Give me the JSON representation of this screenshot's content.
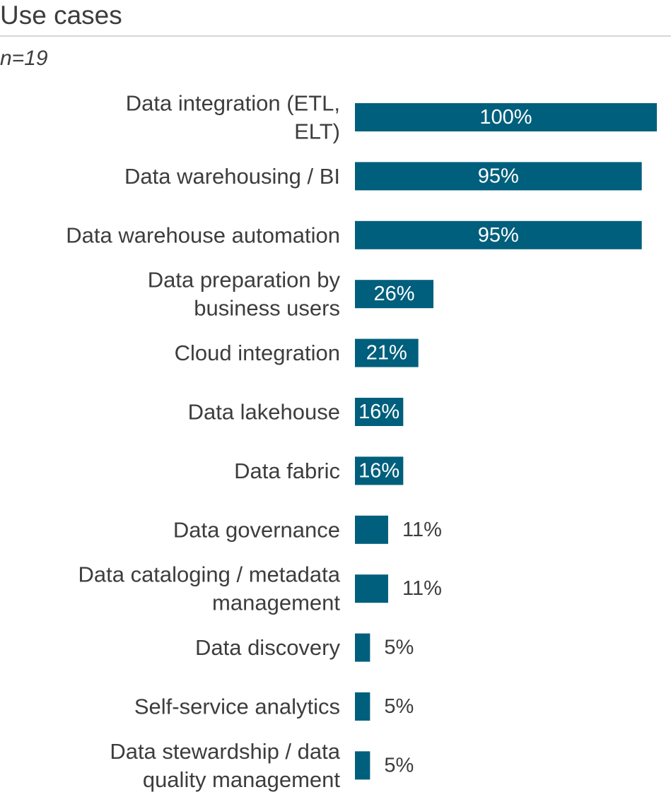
{
  "chart_data": {
    "type": "bar",
    "orientation": "horizontal",
    "title": "Use cases",
    "subtitle": "n=19",
    "categories": [
      "Data integration (ETL, ELT)",
      "Data warehousing / BI",
      "Data warehouse automation",
      "Data preparation by business users",
      "Cloud integration",
      "Data lakehouse",
      "Data fabric",
      "Data governance",
      "Data cataloging / metadata management",
      "Data discovery",
      "Self-service analytics",
      "Data stewardship / data quality management"
    ],
    "category_lines": [
      [
        "Data integration (ETL,",
        "ELT)"
      ],
      [
        "Data warehousing / BI"
      ],
      [
        "Data warehouse automation"
      ],
      [
        "Data preparation by",
        "business users"
      ],
      [
        "Cloud integration"
      ],
      [
        "Data lakehouse"
      ],
      [
        "Data fabric"
      ],
      [
        "Data governance"
      ],
      [
        "Data cataloging / metadata",
        "management"
      ],
      [
        "Data discovery"
      ],
      [
        "Self-service analytics"
      ],
      [
        "Data stewardship / data",
        "quality management"
      ]
    ],
    "values": [
      100,
      95,
      95,
      26,
      21,
      16,
      16,
      11,
      11,
      5,
      5,
      5
    ],
    "value_labels": [
      "100%",
      "95%",
      "95%",
      "26%",
      "21%",
      "16%",
      "16%",
      "11%",
      "11%",
      "5%",
      "5%",
      "5%"
    ],
    "xlim": [
      0,
      100
    ],
    "grid": false,
    "legend": "none",
    "colors": {
      "bar": "#005f7c",
      "label_inside": "#ffffff",
      "label_outside": "#3d3d3d"
    }
  }
}
